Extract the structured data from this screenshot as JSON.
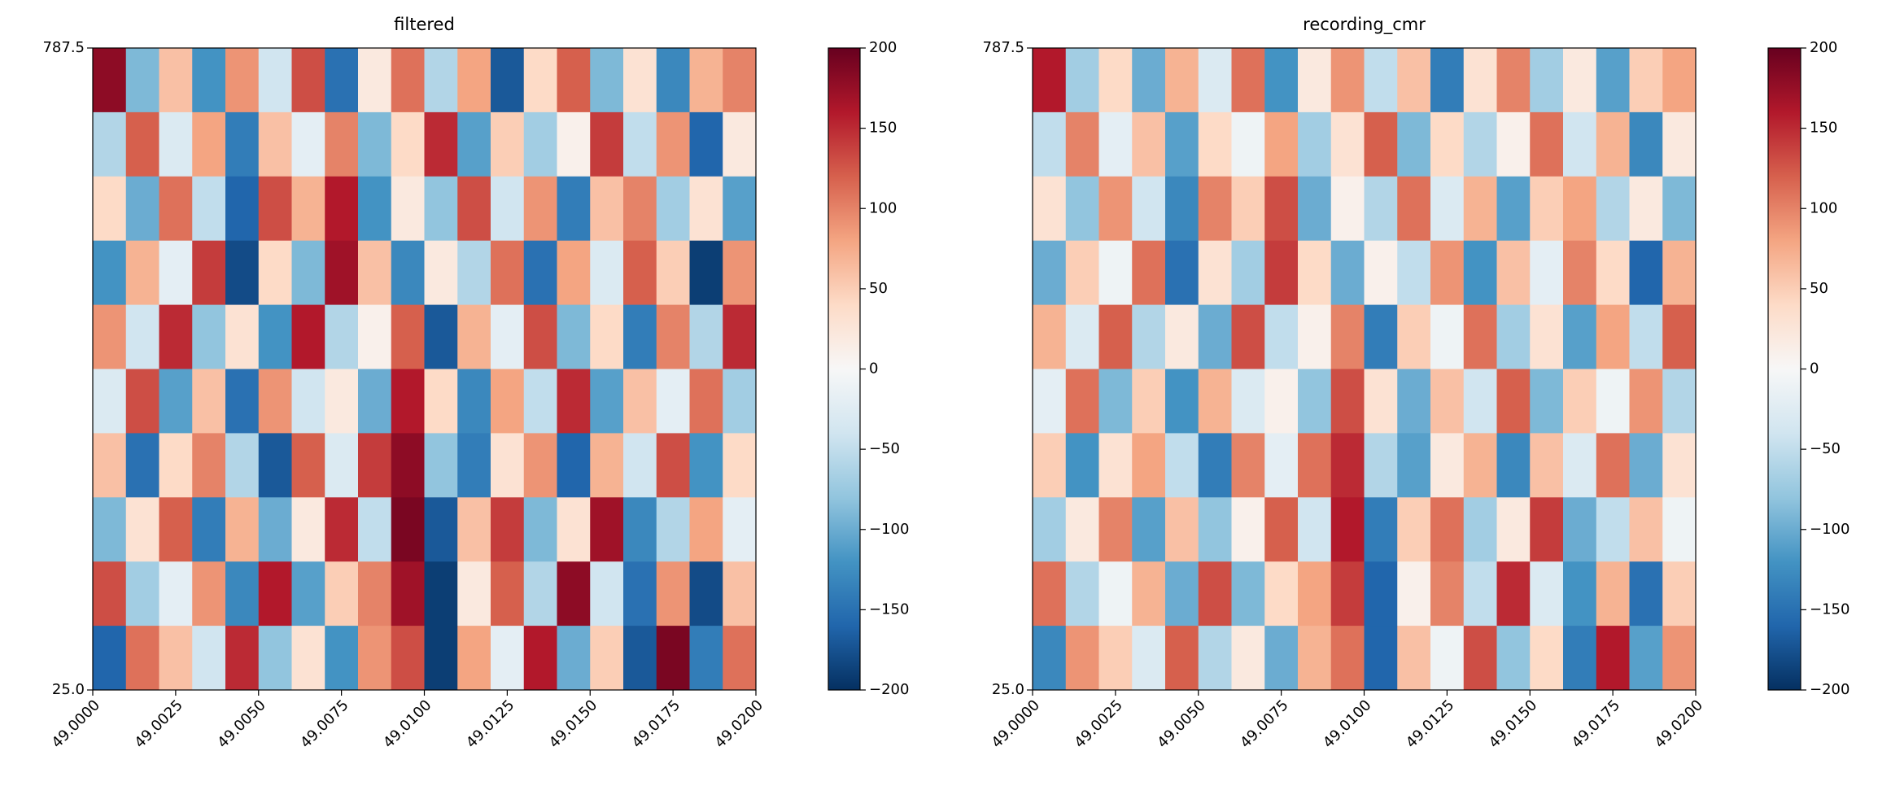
{
  "chart_data": [
    {
      "type": "heatmap",
      "title": "filtered",
      "xlim": [
        49.0,
        49.02
      ],
      "xticks": [
        {
          "value": 49.0,
          "label": "49.0000"
        },
        {
          "value": 49.0025,
          "label": "49.0025"
        },
        {
          "value": 49.005,
          "label": "49.0050"
        },
        {
          "value": 49.0075,
          "label": "49.0075"
        },
        {
          "value": 49.01,
          "label": "49.0100"
        },
        {
          "value": 49.0125,
          "label": "49.0125"
        },
        {
          "value": 49.015,
          "label": "49.0150"
        },
        {
          "value": 49.0175,
          "label": "49.0175"
        },
        {
          "value": 49.02,
          "label": "49.0200"
        }
      ],
      "ylim": [
        25.0,
        787.5
      ],
      "yticks": [
        {
          "value": 25.0,
          "label": "25.0"
        },
        787.5
      ],
      "clim": [
        -200,
        200
      ],
      "cticks": [
        {
          "value": -200,
          "label": "−200"
        },
        {
          "value": -150,
          "label": "−150"
        },
        {
          "value": -100,
          "label": "−100"
        },
        {
          "value": -50,
          "label": "−50"
        },
        0,
        50,
        100,
        150,
        200
      ],
      "z": [
        [
          180,
          -90,
          60,
          -120,
          90,
          -40,
          130,
          -150,
          20,
          110,
          -60,
          80,
          -170,
          40,
          120,
          -90,
          30,
          -130,
          70,
          100
        ],
        [
          -60,
          120,
          -30,
          80,
          -140,
          60,
          -20,
          100,
          -90,
          40,
          150,
          -110,
          50,
          -70,
          10,
          140,
          -50,
          90,
          -160,
          20
        ],
        [
          40,
          -100,
          110,
          -50,
          -160,
          130,
          70,
          160,
          -120,
          20,
          -80,
          130,
          -40,
          90,
          -140,
          60,
          100,
          -70,
          30,
          -110
        ],
        [
          -120,
          70,
          -20,
          140,
          -180,
          40,
          -90,
          170,
          60,
          -130,
          20,
          -60,
          110,
          -150,
          80,
          -30,
          120,
          50,
          -190,
          90
        ],
        [
          90,
          -40,
          150,
          -80,
          30,
          -120,
          160,
          -60,
          10,
          120,
          -170,
          70,
          -20,
          130,
          -90,
          40,
          -140,
          100,
          -60,
          150
        ],
        [
          -30,
          130,
          -110,
          60,
          -150,
          90,
          -40,
          20,
          -100,
          160,
          40,
          -130,
          80,
          -50,
          150,
          -110,
          60,
          -20,
          110,
          -70
        ],
        [
          60,
          -150,
          40,
          100,
          -60,
          -170,
          120,
          -30,
          140,
          180,
          -80,
          -140,
          30,
          90,
          -160,
          70,
          -40,
          130,
          -120,
          40
        ],
        [
          -90,
          30,
          120,
          -140,
          70,
          -100,
          20,
          150,
          -50,
          190,
          -170,
          60,
          140,
          -90,
          30,
          170,
          -130,
          -60,
          80,
          -20
        ],
        [
          130,
          -70,
          -20,
          90,
          -130,
          160,
          -110,
          50,
          100,
          170,
          -190,
          20,
          120,
          -60,
          180,
          -40,
          -150,
          90,
          -180,
          60
        ],
        [
          -160,
          110,
          60,
          -40,
          150,
          -80,
          30,
          -120,
          90,
          130,
          -190,
          80,
          -20,
          160,
          -100,
          50,
          -170,
          190,
          -140,
          110
        ]
      ]
    },
    {
      "type": "heatmap",
      "title": "recording_cmr",
      "xlim": [
        49.0,
        49.02
      ],
      "xticks": [
        {
          "value": 49.0,
          "label": "49.0000"
        },
        {
          "value": 49.0025,
          "label": "49.0025"
        },
        {
          "value": 49.005,
          "label": "49.0050"
        },
        {
          "value": 49.0075,
          "label": "49.0075"
        },
        {
          "value": 49.01,
          "label": "49.0100"
        },
        {
          "value": 49.0125,
          "label": "49.0125"
        },
        {
          "value": 49.015,
          "label": "49.0150"
        },
        {
          "value": 49.0175,
          "label": "49.0175"
        },
        {
          "value": 49.02,
          "label": "49.0200"
        }
      ],
      "ylim": [
        25.0,
        787.5
      ],
      "yticks": [
        {
          "value": 25.0,
          "label": "25.0"
        },
        787.5
      ],
      "clim": [
        -200,
        200
      ],
      "cticks": [
        {
          "value": -200,
          "label": "−200"
        },
        {
          "value": -150,
          "label": "−150"
        },
        {
          "value": -100,
          "label": "−100"
        },
        {
          "value": -50,
          "label": "−50"
        },
        0,
        50,
        100,
        150,
        200
      ],
      "z": [
        [
          160,
          -70,
          40,
          -100,
          70,
          -30,
          110,
          -120,
          20,
          90,
          -50,
          60,
          -140,
          30,
          100,
          -70,
          20,
          -110,
          50,
          80
        ],
        [
          -50,
          100,
          -20,
          60,
          -110,
          40,
          -10,
          80,
          -70,
          30,
          120,
          -90,
          40,
          -60,
          10,
          110,
          -40,
          70,
          -130,
          20
        ],
        [
          30,
          -80,
          90,
          -40,
          -130,
          100,
          50,
          130,
          -100,
          10,
          -60,
          110,
          -30,
          70,
          -110,
          50,
          80,
          -60,
          20,
          -90
        ],
        [
          -100,
          50,
          -10,
          110,
          -150,
          30,
          -70,
          140,
          40,
          -100,
          10,
          -50,
          90,
          -120,
          60,
          -20,
          100,
          40,
          -160,
          70
        ],
        [
          70,
          -30,
          120,
          -60,
          20,
          -100,
          130,
          -50,
          10,
          100,
          -140,
          50,
          -10,
          110,
          -70,
          30,
          -110,
          80,
          -50,
          120
        ],
        [
          -20,
          110,
          -90,
          50,
          -120,
          70,
          -30,
          10,
          -80,
          130,
          30,
          -100,
          60,
          -40,
          120,
          -90,
          50,
          -10,
          90,
          -60
        ],
        [
          50,
          -120,
          30,
          80,
          -50,
          -140,
          100,
          -20,
          110,
          150,
          -60,
          -110,
          20,
          70,
          -130,
          60,
          -30,
          110,
          -100,
          30
        ],
        [
          -70,
          20,
          100,
          -110,
          60,
          -80,
          10,
          120,
          -40,
          160,
          -140,
          50,
          110,
          -70,
          20,
          140,
          -100,
          -50,
          60,
          -10
        ],
        [
          110,
          -60,
          -10,
          70,
          -100,
          130,
          -90,
          40,
          80,
          140,
          -160,
          10,
          100,
          -50,
          150,
          -30,
          -120,
          70,
          -150,
          50
        ],
        [
          -130,
          90,
          50,
          -30,
          120,
          -60,
          20,
          -100,
          70,
          110,
          -160,
          60,
          -10,
          130,
          -80,
          40,
          -140,
          160,
          -110,
          90
        ]
      ]
    }
  ]
}
